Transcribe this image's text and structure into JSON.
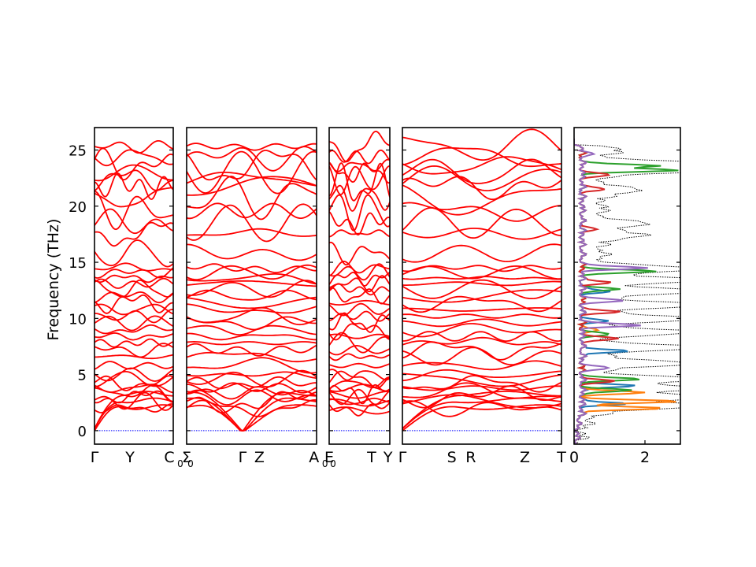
{
  "chart_data": {
    "type": "line",
    "title": "",
    "ylabel": "Frequency (THz)",
    "ylim": [
      -1.2,
      27
    ],
    "yticks": [
      0,
      5,
      10,
      15,
      20,
      25
    ],
    "band_color": "#ff0000",
    "zero_line_color": "#0000ff",
    "dos_total_color": "#000000",
    "panels": [
      {
        "name": "segment-1",
        "kpoints": [
          {
            "label": "Γ",
            "x": 0
          },
          {
            "label": "Y",
            "x": 0.45
          },
          {
            "label": "C",
            "x": 0.95
          }
        ],
        "end_label": "Σ"
      },
      {
        "name": "segment-2",
        "kpoints": [
          {
            "label": "Σ",
            "x": 0
          },
          {
            "label": "Γ",
            "x": 0.43
          },
          {
            "label": "Z",
            "x": 0.56
          },
          {
            "label": "A",
            "x": 0.98
          }
        ],
        "end_label": "E"
      },
      {
        "name": "segment-3",
        "kpoints": [
          {
            "label": "E",
            "x": 0
          },
          {
            "label": "T",
            "x": 0.7
          },
          {
            "label": "Y",
            "x": 0.97
          }
        ],
        "end_label": ""
      },
      {
        "name": "segment-4",
        "kpoints": [
          {
            "label": "Γ",
            "x": 0
          },
          {
            "label": "S",
            "x": 0.31
          },
          {
            "label": "R",
            "x": 0.43
          },
          {
            "label": "Z",
            "x": 0.77
          },
          {
            "label": "T",
            "x": 1
          }
        ],
        "end_label": ""
      }
    ],
    "subscript_labels": [
      {
        "base": "C",
        "sub": "0"
      },
      {
        "base": "A",
        "sub": "0"
      }
    ],
    "band_levels": [
      2.0,
      2.6,
      3.0,
      3.4,
      3.8,
      4.2,
      4.6,
      5.0,
      5.8,
      6.6,
      7.2,
      7.8,
      8.4,
      9.0,
      9.6,
      10.2,
      10.8,
      11.4,
      12.0,
      12.6,
      13.1,
      13.6,
      14.1,
      14.5,
      15.8,
      17.6,
      18.5,
      19.6,
      20.8,
      21.8,
      22.4,
      23.0,
      23.6,
      24.4,
      25.3
    ],
    "dos": {
      "xlim": [
        0,
        3
      ],
      "xticks": [
        0,
        2
      ],
      "partial_series": [
        {
          "color": "#1f77b4",
          "peaks": [
            [
              2.4,
              1.2
            ],
            [
              4.0,
              1.6
            ],
            [
              7.1,
              1.4
            ],
            [
              9.8,
              0.7
            ],
            [
              12.4,
              0.8
            ]
          ]
        },
        {
          "color": "#ff7f0e",
          "peaks": [
            [
              2.0,
              2.4
            ],
            [
              2.6,
              2.8
            ],
            [
              3.4,
              1.8
            ],
            [
              9.0,
              0.5
            ]
          ]
        },
        {
          "color": "#2ca02c",
          "peaks": [
            [
              3.6,
              1.3
            ],
            [
              4.6,
              1.6
            ],
            [
              8.6,
              0.8
            ],
            [
              12.6,
              1.0
            ],
            [
              14.2,
              2.2
            ],
            [
              23.2,
              2.8
            ],
            [
              23.6,
              2.2
            ]
          ]
        },
        {
          "color": "#d62728",
          "peaks": [
            [
              4.4,
              0.9
            ],
            [
              8.2,
              1.1
            ],
            [
              10.6,
              1.0
            ],
            [
              13.2,
              0.9
            ],
            [
              18.0,
              0.4
            ],
            [
              21.5,
              0.7
            ],
            [
              22.8,
              0.8
            ]
          ]
        },
        {
          "color": "#9467bd",
          "peaks": [
            [
              5.6,
              0.8
            ],
            [
              9.4,
              1.7
            ],
            [
              11.6,
              1.2
            ],
            [
              14.5,
              1.8
            ],
            [
              24.6,
              0.3
            ]
          ]
        }
      ],
      "total_peaks": [
        [
          2.2,
          3.0
        ],
        [
          3.0,
          3.0
        ],
        [
          3.8,
          2.9
        ],
        [
          4.6,
          3.0
        ],
        [
          6.0,
          2.6
        ],
        [
          7.4,
          3.0
        ],
        [
          8.8,
          2.8
        ],
        [
          10.0,
          2.9
        ],
        [
          11.2,
          3.0
        ],
        [
          12.4,
          3.0
        ],
        [
          13.4,
          3.0
        ],
        [
          14.4,
          3.0
        ],
        [
          17.4,
          1.3
        ],
        [
          18.4,
          1.4
        ],
        [
          21.4,
          1.2
        ],
        [
          23.2,
          3.0
        ],
        [
          23.8,
          3.0
        ],
        [
          25.0,
          0.5
        ]
      ]
    }
  }
}
